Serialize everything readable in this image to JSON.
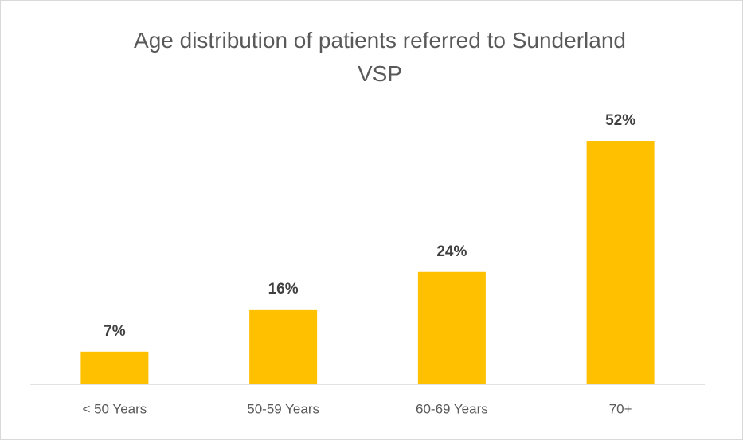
{
  "chart_data": {
    "type": "bar",
    "title": "Age distribution of patients referred to Sunderland VSP",
    "categories": [
      "< 50 Years",
      "50-59 Years",
      "60-69 Years",
      "70+"
    ],
    "values": [
      7,
      16,
      24,
      52
    ],
    "value_labels": [
      "7%",
      "16%",
      "24%",
      "52%"
    ],
    "color": "#ffc000"
  }
}
